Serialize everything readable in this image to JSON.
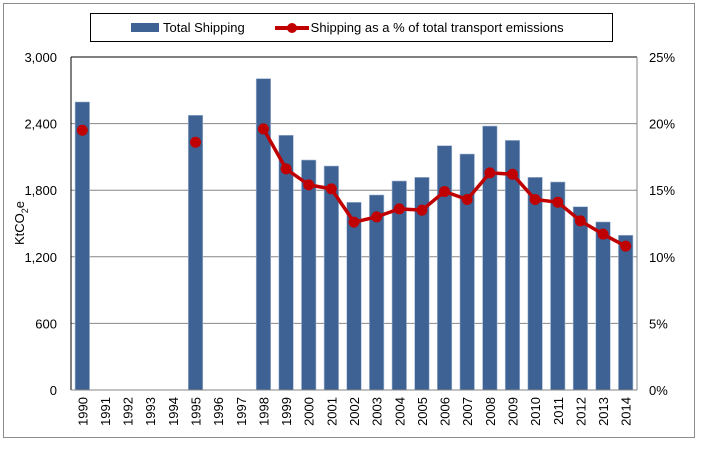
{
  "chart_data": {
    "type": "bar",
    "title": "",
    "xlabel": "",
    "ylabel": "KtCO2e",
    "ylabel_main": "KtCO",
    "ylabel_sub": "2",
    "ylabel_tail": "e",
    "y2label": "",
    "ylim": [
      0,
      3000
    ],
    "y2lim": [
      0,
      25
    ],
    "yticks": [
      "0",
      "600",
      "1,200",
      "1,800",
      "2,400",
      "3,000"
    ],
    "ytick_values": [
      0,
      600,
      1200,
      1800,
      2400,
      3000
    ],
    "y2ticks": [
      "0%",
      "5%",
      "10%",
      "15%",
      "20%",
      "25%"
    ],
    "y2tick_values": [
      0,
      5,
      10,
      15,
      20,
      25
    ],
    "grid": true,
    "legend_position": "top",
    "categories": [
      "1990",
      "1991",
      "1992",
      "1993",
      "1994",
      "1995",
      "1996",
      "1997",
      "1998",
      "1999",
      "2000",
      "2001",
      "2002",
      "2003",
      "2004",
      "2005",
      "2006",
      "2007",
      "2008",
      "2009",
      "2010",
      "2011",
      "2012",
      "2013",
      "2014"
    ],
    "series": [
      {
        "name": "Total Shipping",
        "type": "bar",
        "axis": "left",
        "color": "#3e6293",
        "values": [
          2595,
          null,
          null,
          null,
          null,
          2475,
          null,
          null,
          2805,
          2295,
          2072,
          2018,
          1691,
          1757,
          1883,
          1916,
          2201,
          2126,
          2378,
          2249,
          1916,
          1874,
          1651,
          1514,
          1394
        ]
      },
      {
        "name": "Shipping as a % of total transport emissions",
        "type": "line",
        "axis": "right",
        "unit": "%",
        "color": "#c00000",
        "values": [
          19.5,
          null,
          null,
          null,
          null,
          18.6,
          null,
          null,
          19.6,
          16.6,
          15.4,
          15.1,
          12.6,
          13.0,
          13.6,
          13.5,
          14.9,
          14.3,
          16.3,
          16.2,
          14.3,
          14.1,
          12.7,
          11.7,
          10.8
        ]
      }
    ]
  },
  "legend": {
    "bar_label": "Total Shipping",
    "line_label": "Shipping as a % of total transport emissions"
  }
}
